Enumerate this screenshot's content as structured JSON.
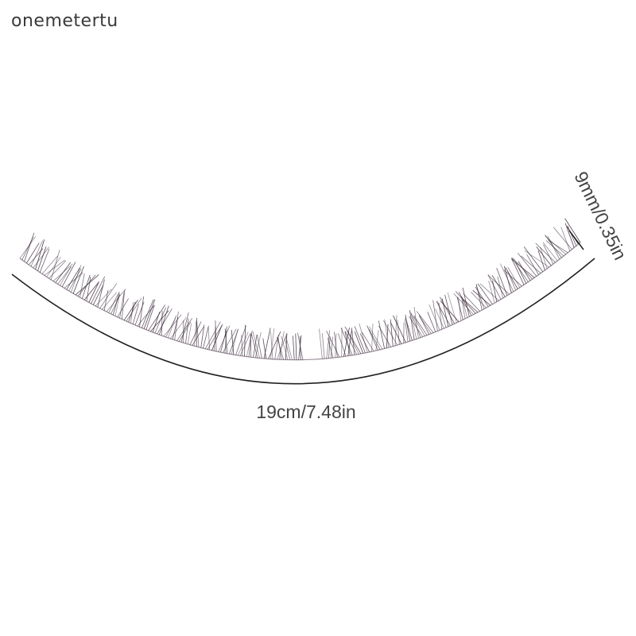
{
  "brand": "onemetertu",
  "product": {
    "length_label": "19cm/7.48in",
    "height_label": "9mm/0.35in"
  },
  "colors": {
    "lash": "#3a2a3a",
    "line": "#222222",
    "text": "#444444"
  }
}
